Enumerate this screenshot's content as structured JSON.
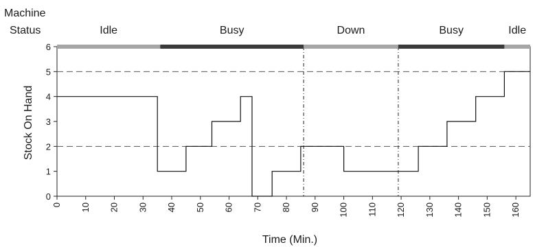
{
  "chart_data": {
    "type": "line",
    "step": true,
    "status_header": {
      "label_line1": "Machine",
      "label_line2": "Status",
      "segments": [
        {
          "label": "Idle",
          "start": 0,
          "end": 36,
          "color": "#a6a6a6"
        },
        {
          "label": "Busy",
          "start": 36,
          "end": 86,
          "color": "#3a3a3a"
        },
        {
          "label": "Down",
          "start": 86,
          "end": 119,
          "color": "#a6a6a6"
        },
        {
          "label": "Busy",
          "start": 119,
          "end": 156,
          "color": "#3a3a3a"
        },
        {
          "label": "Idle",
          "start": 156,
          "end": 165,
          "color": "#a6a6a6"
        }
      ]
    },
    "xlabel": "Time (Min.)",
    "ylabel": "Stock On Hand",
    "xlim": [
      0,
      165
    ],
    "ylim": [
      0,
      6
    ],
    "xticks": [
      0,
      10,
      20,
      30,
      40,
      50,
      60,
      70,
      80,
      90,
      100,
      110,
      120,
      130,
      140,
      150,
      160
    ],
    "yticks": [
      0,
      1,
      2,
      3,
      4,
      5,
      6
    ],
    "reference_lines_y": [
      2,
      5
    ],
    "reference_lines_x": [
      86,
      119
    ],
    "series": [
      {
        "points": [
          [
            0,
            4
          ],
          [
            35,
            4
          ],
          [
            35,
            1
          ],
          [
            45,
            1
          ],
          [
            45,
            2
          ],
          [
            54,
            2
          ],
          [
            54,
            3
          ],
          [
            64,
            3
          ],
          [
            64,
            4
          ],
          [
            68,
            4
          ],
          [
            68,
            0
          ],
          [
            75,
            0
          ],
          [
            75,
            1
          ],
          [
            85,
            1
          ],
          [
            85,
            2
          ],
          [
            100,
            2
          ],
          [
            100,
            1
          ],
          [
            126,
            1
          ],
          [
            126,
            2
          ],
          [
            136,
            2
          ],
          [
            136,
            3
          ],
          [
            146,
            3
          ],
          [
            146,
            4
          ],
          [
            156,
            4
          ],
          [
            156,
            5
          ],
          [
            165,
            5
          ]
        ]
      }
    ]
  }
}
